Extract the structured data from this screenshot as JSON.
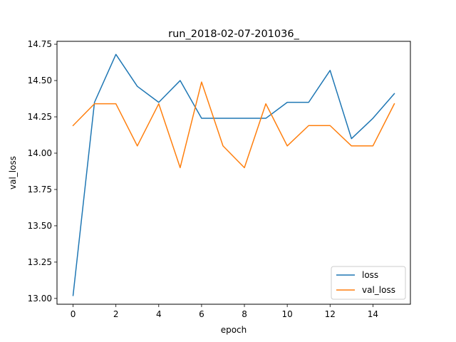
{
  "chart_data": {
    "type": "line",
    "title": "run_2018-02-07-201036_",
    "xlabel": "epoch",
    "ylabel": "val_loss",
    "xlim": [
      -0.75,
      15.75
    ],
    "ylim": [
      12.96,
      14.77
    ],
    "xticks": [
      0,
      2,
      4,
      6,
      8,
      10,
      12,
      14
    ],
    "yticks": [
      13.0,
      13.25,
      13.5,
      13.75,
      14.0,
      14.25,
      14.5,
      14.75
    ],
    "ytick_labels": [
      "13.00",
      "13.25",
      "13.50",
      "13.75",
      "14.00",
      "14.25",
      "14.50",
      "14.75"
    ],
    "grid": false,
    "legend_position": "lower-right",
    "x": [
      0,
      1,
      2,
      3,
      4,
      5,
      6,
      7,
      8,
      9,
      10,
      11,
      12,
      13,
      14,
      15
    ],
    "series": [
      {
        "name": "loss",
        "color": "#1f77b4",
        "values": [
          13.02,
          14.35,
          14.68,
          14.46,
          14.35,
          14.5,
          14.24,
          14.24,
          14.24,
          14.24,
          14.35,
          14.35,
          14.57,
          14.1,
          14.24,
          14.41
        ]
      },
      {
        "name": "val_loss",
        "color": "#ff7f0e",
        "values": [
          14.19,
          14.34,
          14.34,
          14.05,
          14.34,
          13.9,
          14.49,
          14.05,
          13.9,
          14.34,
          14.05,
          14.19,
          14.19,
          14.05,
          14.05,
          14.34
        ]
      }
    ]
  }
}
